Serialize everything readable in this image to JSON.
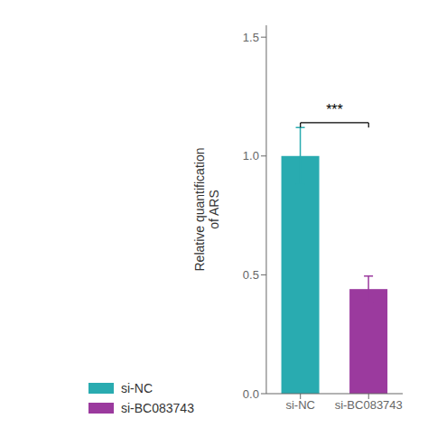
{
  "chart_data": {
    "type": "bar",
    "categories": [
      "si-NC",
      "si-BC083743"
    ],
    "values": [
      1.0,
      0.44
    ],
    "errors": [
      0.12,
      0.055
    ],
    "colors": [
      "#29ABB0",
      "#9B3A9E"
    ],
    "ylabel": "Relative quantification\nof ARS",
    "ylim": [
      0.0,
      1.55
    ],
    "yticks": [
      {
        "value": 0.0,
        "label": "0.0"
      },
      {
        "value": 0.5,
        "label": "0.5"
      },
      {
        "value": 1.0,
        "label": "1.0"
      },
      {
        "value": 1.5,
        "label": "1.5"
      }
    ],
    "annotations": [
      {
        "text": "***",
        "x": [
          "si-NC",
          "si-BC083743"
        ],
        "y": 1.175,
        "bracket_y": 1.14
      }
    ],
    "legend": "lower left"
  }
}
